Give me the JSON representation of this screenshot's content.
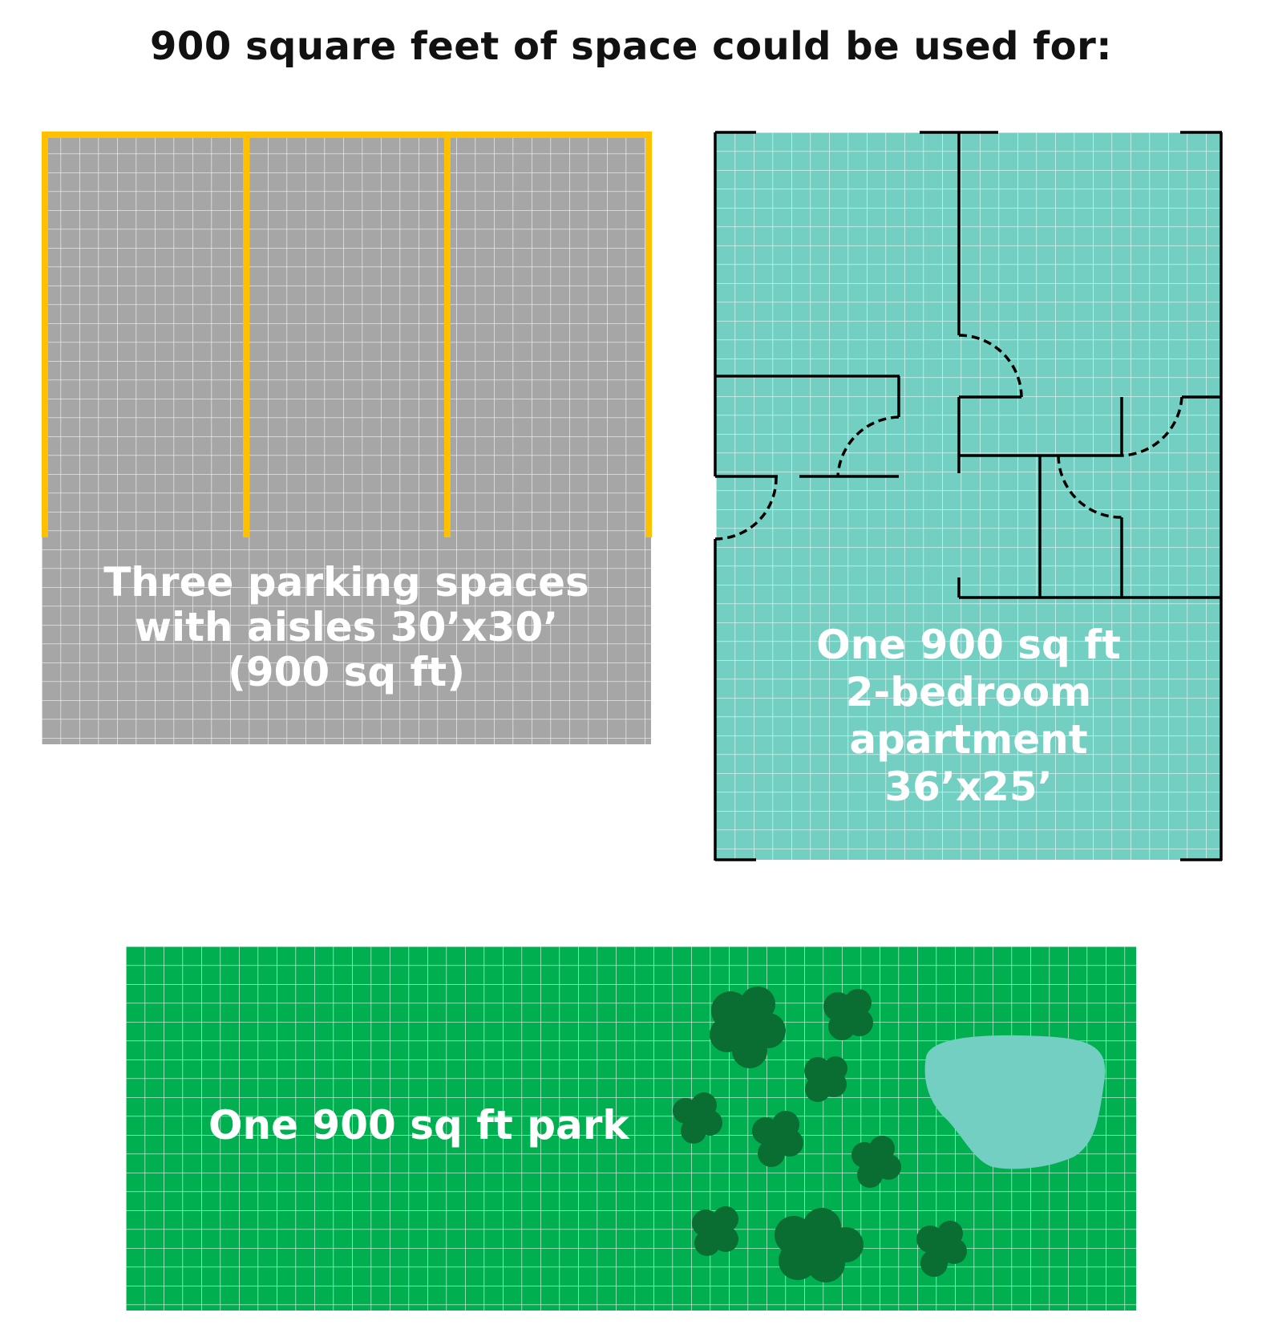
{
  "title": "900 square feet of space could be used for:",
  "panels": {
    "parking": {
      "lines": [
        "Three parking spaces",
        "with aisles 30’x30’",
        "(900 sq ft)"
      ]
    },
    "apartment": {
      "lines": [
        "One 900 sq ft",
        "2-bedroom",
        "apartment",
        "36’x25’"
      ]
    },
    "park": {
      "lines": [
        "One 900 sq ft park"
      ]
    }
  },
  "colors": {
    "parking_fill": "#a6a6a6",
    "parking_stripe": "#ffc000",
    "apartment_fill": "#72cfc1",
    "apartment_wall": "#000000",
    "park_fill": "#00af50",
    "tree": "#0a6e32",
    "pond": "#72cfc1",
    "grid": "#ffffff"
  }
}
